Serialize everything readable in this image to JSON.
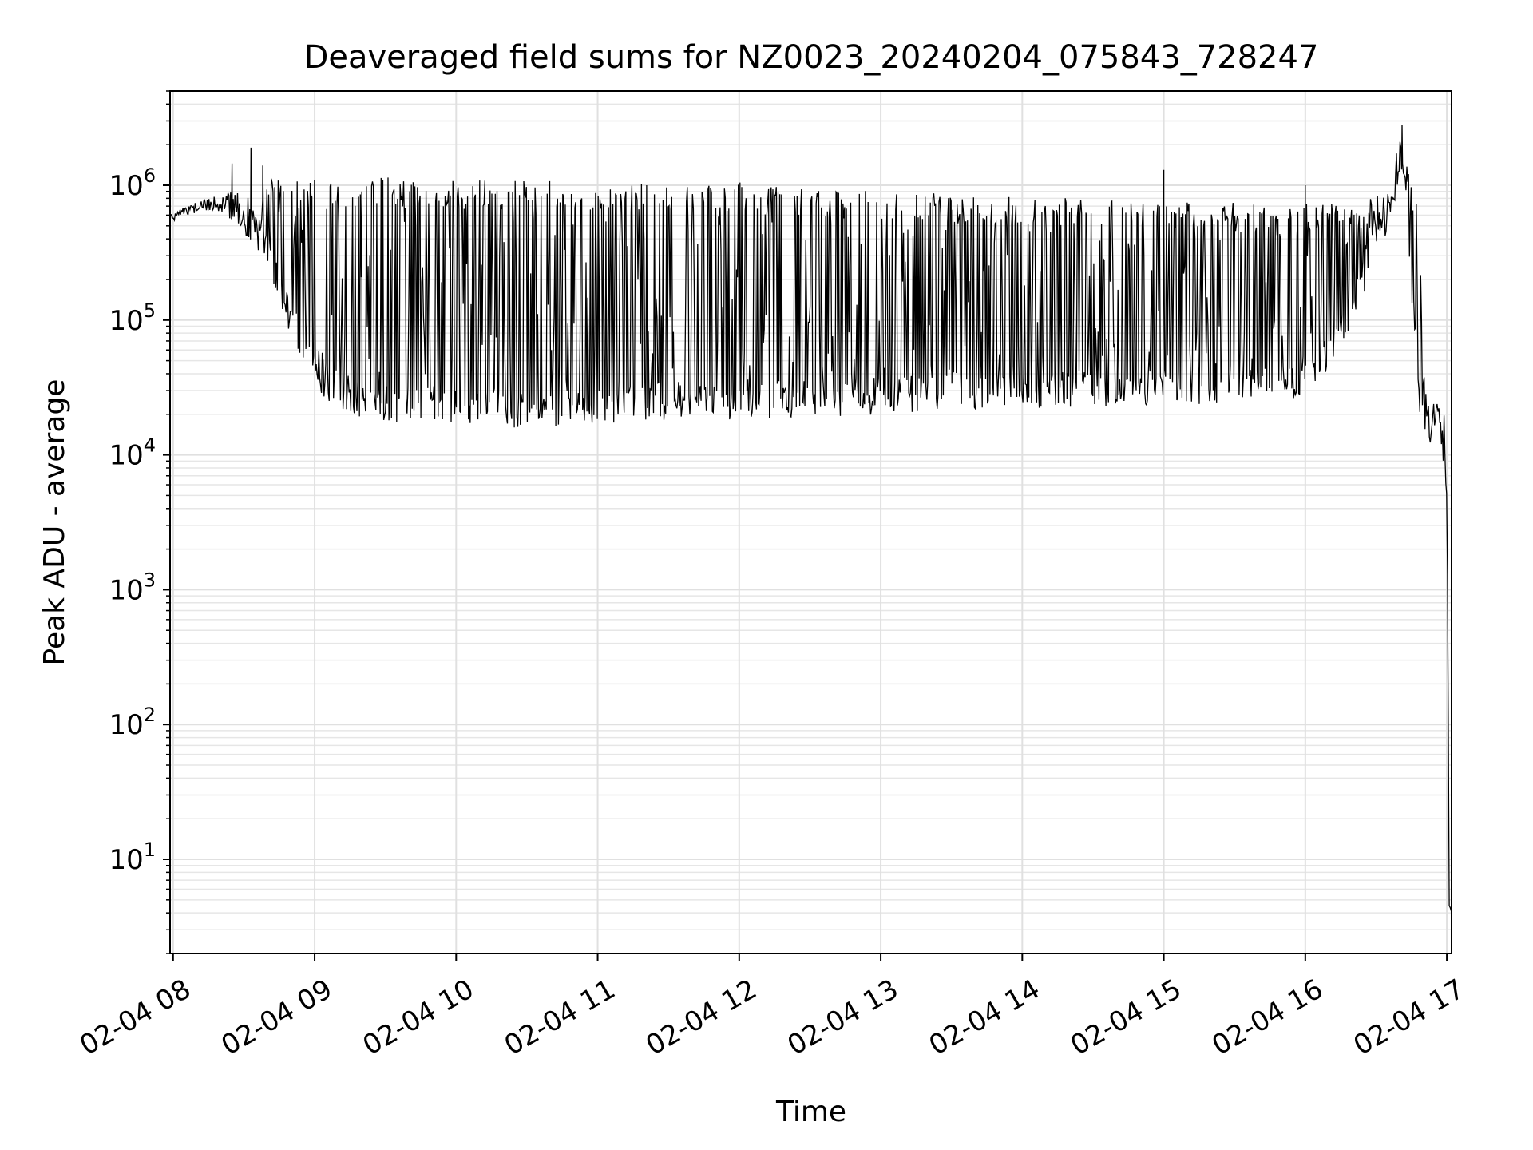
{
  "chart_data": {
    "type": "line",
    "title": "Deaveraged field sums for NZ0023_20240204_075843_728247",
    "xlabel": "Time",
    "ylabel": "Peak ADU - average",
    "yscale": "log",
    "ylim": [
      2,
      5000000
    ],
    "xlim": [
      "2024-02-04 07:58:43",
      "2024-02-04 17:02:00"
    ],
    "grid": true,
    "line_color": "#000000",
    "x_ticks": [
      {
        "t": "2024-02-04 08:00",
        "label": "02-04 08"
      },
      {
        "t": "2024-02-04 09:00",
        "label": "02-04 09"
      },
      {
        "t": "2024-02-04 10:00",
        "label": "02-04 10"
      },
      {
        "t": "2024-02-04 11:00",
        "label": "02-04 11"
      },
      {
        "t": "2024-02-04 12:00",
        "label": "02-04 12"
      },
      {
        "t": "2024-02-04 13:00",
        "label": "02-04 13"
      },
      {
        "t": "2024-02-04 14:00",
        "label": "02-04 14"
      },
      {
        "t": "2024-02-04 15:00",
        "label": "02-04 15"
      },
      {
        "t": "2024-02-04 16:00",
        "label": "02-04 16"
      },
      {
        "t": "2024-02-04 17:00",
        "label": "02-04 17"
      }
    ],
    "y_ticks": [
      {
        "value": 10,
        "base": "10",
        "exp": "1"
      },
      {
        "value": 100,
        "base": "10",
        "exp": "2"
      },
      {
        "value": 1000,
        "base": "10",
        "exp": "3"
      },
      {
        "value": 10000,
        "base": "10",
        "exp": "4"
      },
      {
        "value": 100000,
        "base": "10",
        "exp": "5"
      },
      {
        "value": 1000000,
        "base": "10",
        "exp": "6"
      }
    ],
    "series": [
      {
        "envelope": {
          "x": [
            "2024-02-04 07:58:43",
            "2024-02-04 08:05",
            "2024-02-04 08:15",
            "2024-02-04 08:22",
            "2024-02-04 08:28",
            "2024-02-04 08:33",
            "2024-02-04 08:38",
            "2024-02-04 08:42",
            "2024-02-04 08:48",
            "2024-02-04 08:53",
            "2024-02-04 08:58",
            "2024-02-04 09:03",
            "2024-02-04 09:10",
            "2024-02-04 09:20",
            "2024-02-04 09:30",
            "2024-02-04 09:40",
            "2024-02-04 09:50",
            "2024-02-04 10:00",
            "2024-02-04 10:20",
            "2024-02-04 10:40",
            "2024-02-04 11:00",
            "2024-02-04 11:20",
            "2024-02-04 11:40",
            "2024-02-04 12:00",
            "2024-02-04 12:20",
            "2024-02-04 12:40",
            "2024-02-04 13:00",
            "2024-02-04 13:20",
            "2024-02-04 13:40",
            "2024-02-04 14:00",
            "2024-02-04 14:20",
            "2024-02-04 14:40",
            "2024-02-04 15:00",
            "2024-02-04 15:20",
            "2024-02-04 15:40",
            "2024-02-04 15:55",
            "2024-02-04 16:05",
            "2024-02-04 16:15",
            "2024-02-04 16:25",
            "2024-02-04 16:32",
            "2024-02-04 16:37",
            "2024-02-04 16:40",
            "2024-02-04 16:43",
            "2024-02-04 16:46",
            "2024-02-04 16:49",
            "2024-02-04 16:52",
            "2024-02-04 16:55",
            "2024-02-04 16:57",
            "2024-02-04 17:00",
            "2024-02-04 17:01",
            "2024-02-04 17:02"
          ],
          "low": [
            520000,
            600000,
            650000,
            620000,
            480000,
            380000,
            300000,
            180000,
            90000,
            50000,
            35000,
            28000,
            22000,
            19000,
            18000,
            17000,
            17500,
            16500,
            16000,
            15500,
            17000,
            18000,
            18500,
            18000,
            19000,
            19000,
            20000,
            20500,
            21000,
            21500,
            22000,
            23000,
            23500,
            24000,
            25000,
            26000,
            30000,
            60000,
            150000,
            300000,
            700000,
            900000,
            600000,
            80000,
            12000,
            10000,
            15000,
            16000,
            3000,
            4,
            4
          ],
          "high": [
            600000,
            700000,
            800000,
            880000,
            900000,
            850000,
            1100000,
            1200000,
            1150000,
            1150000,
            1100000,
            1120000,
            1130000,
            1150000,
            1150000,
            1100000,
            1120000,
            1100000,
            1100000,
            1080000,
            1050000,
            1040000,
            1020000,
            1050000,
            960000,
            950000,
            900000,
            880000,
            850000,
            820000,
            800000,
            800000,
            780000,
            760000,
            720000,
            660000,
            800000,
            800000,
            800000,
            900000,
            1200000,
            2500000,
            1500000,
            1100000,
            400000,
            25000,
            24000,
            24000,
            20000,
            5,
            4
          ],
          "upper_limit": [
            600000,
            700000,
            800000,
            880000,
            900000,
            850000,
            1300000,
            1300000,
            1200000,
            1150000,
            1100000,
            1120000,
            1130000,
            1150000,
            1150000,
            1100000,
            1120000,
            1100000,
            1100000,
            1080000,
            1060000,
            1050000,
            1040000,
            1050000,
            1000000,
            960000,
            920000,
            900000,
            880000,
            860000,
            840000,
            830000,
            820000,
            800000,
            780000,
            750000,
            800000,
            800000,
            800000,
            900000,
            1200000,
            2500000,
            1500000,
            1100000,
            400000,
            25000,
            24000,
            24000,
            20000,
            5,
            4
          ]
        },
        "dense_region": [
          "2024-02-04 08:35",
          "2024-02-04 16:28"
        ],
        "spikes": [
          {
            "t": "2024-02-04 08:25",
            "value": 1450000
          },
          {
            "t": "2024-02-04 08:33",
            "value": 1900000
          },
          {
            "t": "2024-02-04 08:38",
            "value": 1400000
          },
          {
            "t": "2024-02-04 09:20",
            "value": 900000
          },
          {
            "t": "2024-02-04 15:00",
            "value": 1300000
          },
          {
            "t": "2024-02-04 16:00",
            "value": 1000000
          },
          {
            "t": "2024-02-04 16:41",
            "value": 2800000
          }
        ]
      }
    ]
  }
}
